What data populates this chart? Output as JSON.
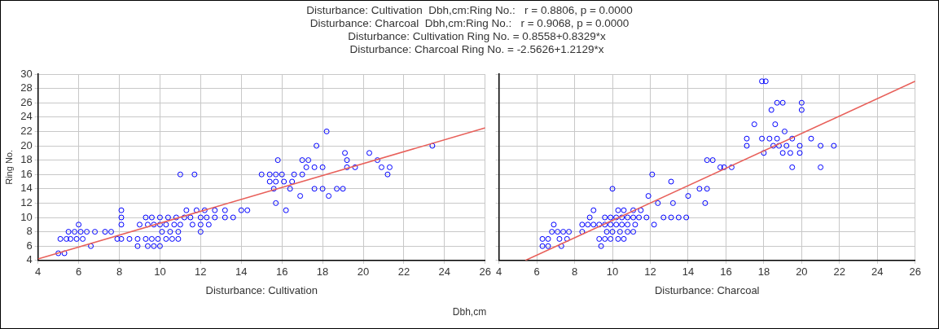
{
  "chart_data": [
    {
      "type": "scatter",
      "title": "Disturbance: Cultivation  Dbh,cm:Ring No.:   r = 0.8806, p = 0.0000\nDisturbance: Charcoal  Dbh,cm:Ring No.:   r = 0.9068, p = 0.0000\nDisturbance: Cultivation Ring No. = 0.8558+0.8329*x\nDisturbance: Charcoal Ring No. = -2.5626+1.2129*x",
      "xlabel": "Disturbance: Cultivation",
      "ylabel": "Ring No.",
      "annotations": [
        "Dbh,cm"
      ],
      "xlim": [
        4,
        26
      ],
      "ylim": [
        4,
        30
      ],
      "xticks": [
        4,
        6,
        8,
        10,
        12,
        14,
        16,
        18,
        20,
        22,
        24,
        26
      ],
      "yticks": [
        4,
        6,
        8,
        10,
        12,
        14,
        16,
        18,
        20,
        22,
        24,
        26,
        28,
        30
      ],
      "grid": true,
      "series": [
        {
          "marker": "circle",
          "color": "#0000ff",
          "x": [
            5.0,
            5.3,
            5.1,
            5.4,
            5.6,
            5.9,
            6.2,
            7.9,
            8.1,
            8.5,
            8.9,
            9.3,
            9.6,
            9.9,
            10.3,
            10.6,
            10.9,
            5.5,
            5.8,
            6.1,
            6.4,
            6.8,
            7.3,
            7.6,
            10.1,
            10.5,
            10.9,
            12.0,
            6.0,
            8.1,
            9.0,
            9.4,
            9.7,
            10.0,
            10.3,
            10.7,
            11.0,
            11.6,
            12.0,
            12.4,
            6.6,
            8.9,
            9.4,
            9.7,
            10.0,
            8.1,
            9.3,
            9.6,
            10.0,
            10.4,
            10.8,
            11.2,
            11.5,
            12.0,
            12.3,
            12.7,
            13.2,
            13.6,
            8.1,
            11.3,
            11.8,
            12.2,
            12.7,
            13.2,
            14.0,
            14.3,
            11.0,
            11.7,
            18.2,
            17.7,
            23.4,
            19.1,
            20.3,
            15.8,
            17.0,
            17.3,
            19.2,
            20.7,
            17.2,
            17.6,
            18.0,
            19.2,
            19.6,
            20.9,
            21.3,
            15.0,
            15.4,
            15.7,
            16.0,
            16.6,
            17.0,
            21.2,
            15.4,
            15.7,
            16.1,
            16.5,
            15.6,
            16.4,
            17.6,
            18.0,
            18.7,
            19.0,
            16.9,
            18.3,
            15.7,
            16.2
          ],
          "values": [
            5,
            5,
            7,
            7,
            7,
            7,
            7,
            7,
            7,
            7,
            7,
            7,
            7,
            7,
            7,
            7,
            7,
            8,
            8,
            8,
            8,
            8,
            8,
            8,
            8,
            8,
            8,
            8,
            9,
            9,
            9,
            9,
            9,
            9,
            9,
            9,
            9,
            9,
            9,
            9,
            6,
            6,
            6,
            6,
            6,
            10,
            10,
            10,
            10,
            10,
            10,
            10,
            10,
            10,
            10,
            10,
            10,
            10,
            11,
            11,
            11,
            11,
            11,
            11,
            11,
            11,
            16,
            16,
            22,
            20,
            20,
            19,
            19,
            18,
            18,
            18,
            18,
            18,
            17,
            17,
            17,
            17,
            17,
            17,
            17,
            16,
            16,
            16,
            16,
            16,
            16,
            16,
            15,
            15,
            15,
            15,
            14,
            14,
            14,
            14,
            14,
            14,
            13,
            13,
            12,
            11
          ]
        },
        {
          "type": "line",
          "color": "#e8605a",
          "x": [
            4,
            26
          ],
          "values": [
            4.2,
            22.5
          ]
        }
      ]
    },
    {
      "type": "scatter",
      "xlabel": "Disturbance: Charcoal",
      "tick_labels": "x",
      "xlim": [
        4,
        26
      ],
      "ylim": [
        4,
        30
      ],
      "xticks": [
        4,
        6,
        8,
        10,
        12,
        14,
        16,
        18,
        20,
        22,
        24,
        26
      ],
      "yticks": [
        4,
        6,
        8,
        10,
        12,
        14,
        16,
        18,
        20,
        22,
        24,
        26,
        28,
        30
      ],
      "grid": true,
      "series": [
        {
          "marker": "circle",
          "color": "#0000ff",
          "x": [
            6.3,
            6.6,
            7.3,
            9.4,
            6.3,
            6.6,
            7.2,
            7.6,
            9.3,
            9.6,
            9.9,
            10.3,
            10.6,
            6.8,
            7.1,
            7.4,
            7.7,
            8.4,
            9.7,
            10.0,
            10.4,
            10.8,
            11.1,
            6.9,
            8.4,
            8.7,
            9.0,
            9.3,
            9.6,
            9.9,
            10.2,
            10.5,
            10.8,
            11.2,
            12.2,
            8.8,
            9.6,
            9.9,
            10.2,
            10.5,
            10.8,
            11.1,
            11.4,
            11.8,
            12.7,
            13.1,
            13.5,
            13.9,
            9.0,
            10.3,
            10.6,
            11.1,
            11.5,
            12.4,
            13.2,
            14.9,
            11.9,
            14.0,
            10.0,
            14.6,
            15.0,
            13.1,
            12.1,
            15.0,
            15.3,
            17.9,
            18.1,
            18.7,
            19.0,
            20.0,
            18.4,
            20.0,
            17.5,
            18.6,
            19.1,
            17.1,
            17.9,
            18.3,
            18.7,
            19.5,
            20.5,
            17.1,
            18.5,
            18.8,
            19.2,
            19.9,
            21.0,
            21.7,
            18.0,
            19.0,
            19.4,
            19.9,
            15.7,
            15.9,
            16.3,
            19.5,
            21.0
          ],
          "values": [
            6,
            6,
            6,
            6,
            7,
            7,
            7,
            7,
            7,
            7,
            7,
            7,
            7,
            8,
            8,
            8,
            8,
            8,
            8,
            8,
            8,
            8,
            8,
            9,
            9,
            9,
            9,
            9,
            9,
            9,
            9,
            9,
            9,
            9,
            9,
            10,
            10,
            10,
            10,
            10,
            10,
            10,
            10,
            10,
            10,
            10,
            10,
            10,
            11,
            11,
            11,
            11,
            11,
            12,
            12,
            12,
            13,
            13,
            14,
            14,
            14,
            15,
            16,
            18,
            18,
            29,
            29,
            26,
            26,
            26,
            25,
            25,
            23,
            23,
            22,
            21,
            21,
            21,
            21,
            21,
            21,
            20,
            20,
            20,
            20,
            20,
            20,
            20,
            19,
            19,
            19,
            19,
            17,
            17,
            17,
            17,
            17
          ]
        },
        {
          "type": "line",
          "color": "#e8605a",
          "x": [
            5.4,
            26
          ],
          "values": [
            4.0,
            29.0
          ]
        }
      ]
    }
  ]
}
